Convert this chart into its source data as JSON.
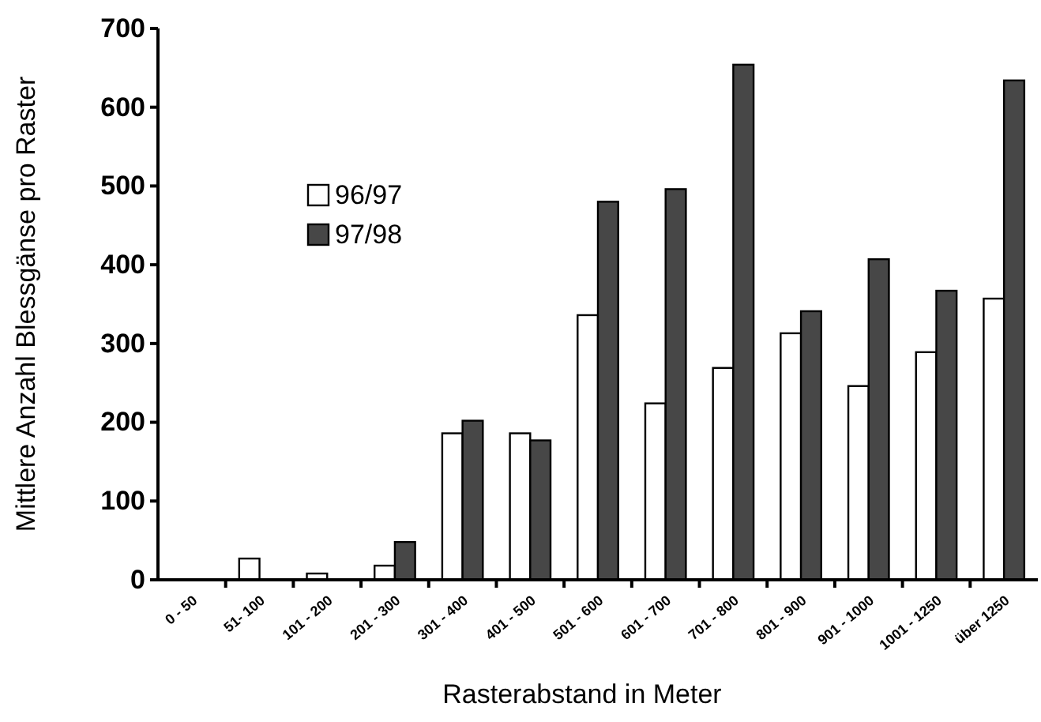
{
  "chart_data": {
    "type": "bar",
    "xlabel": "Rasterabstand in Meter",
    "ylabel": "Mittlere Anzahl Blessgänse pro Raster",
    "categories": [
      "0 - 50",
      "51- 100",
      "101 - 200",
      "201 - 300",
      "301 - 400",
      "401 - 500",
      "501 - 600",
      "601 - 700",
      "701 - 800",
      "801 - 900",
      "901 - 1000",
      "1001 - 1250",
      "über 1250"
    ],
    "series": [
      {
        "name": "96/97",
        "color": "#ffffff",
        "values": [
          0,
          27,
          8,
          18,
          186,
          186,
          336,
          224,
          269,
          313,
          246,
          289,
          357
        ]
      },
      {
        "name": "97/98",
        "color": "#474747",
        "values": [
          0,
          0,
          0,
          48,
          202,
          177,
          480,
          496,
          654,
          341,
          407,
          367,
          634
        ]
      }
    ],
    "ylim": [
      0,
      700
    ],
    "yticks": [
      0,
      100,
      200,
      300,
      400,
      500,
      600,
      700
    ],
    "grid": false,
    "legend": "top left"
  }
}
